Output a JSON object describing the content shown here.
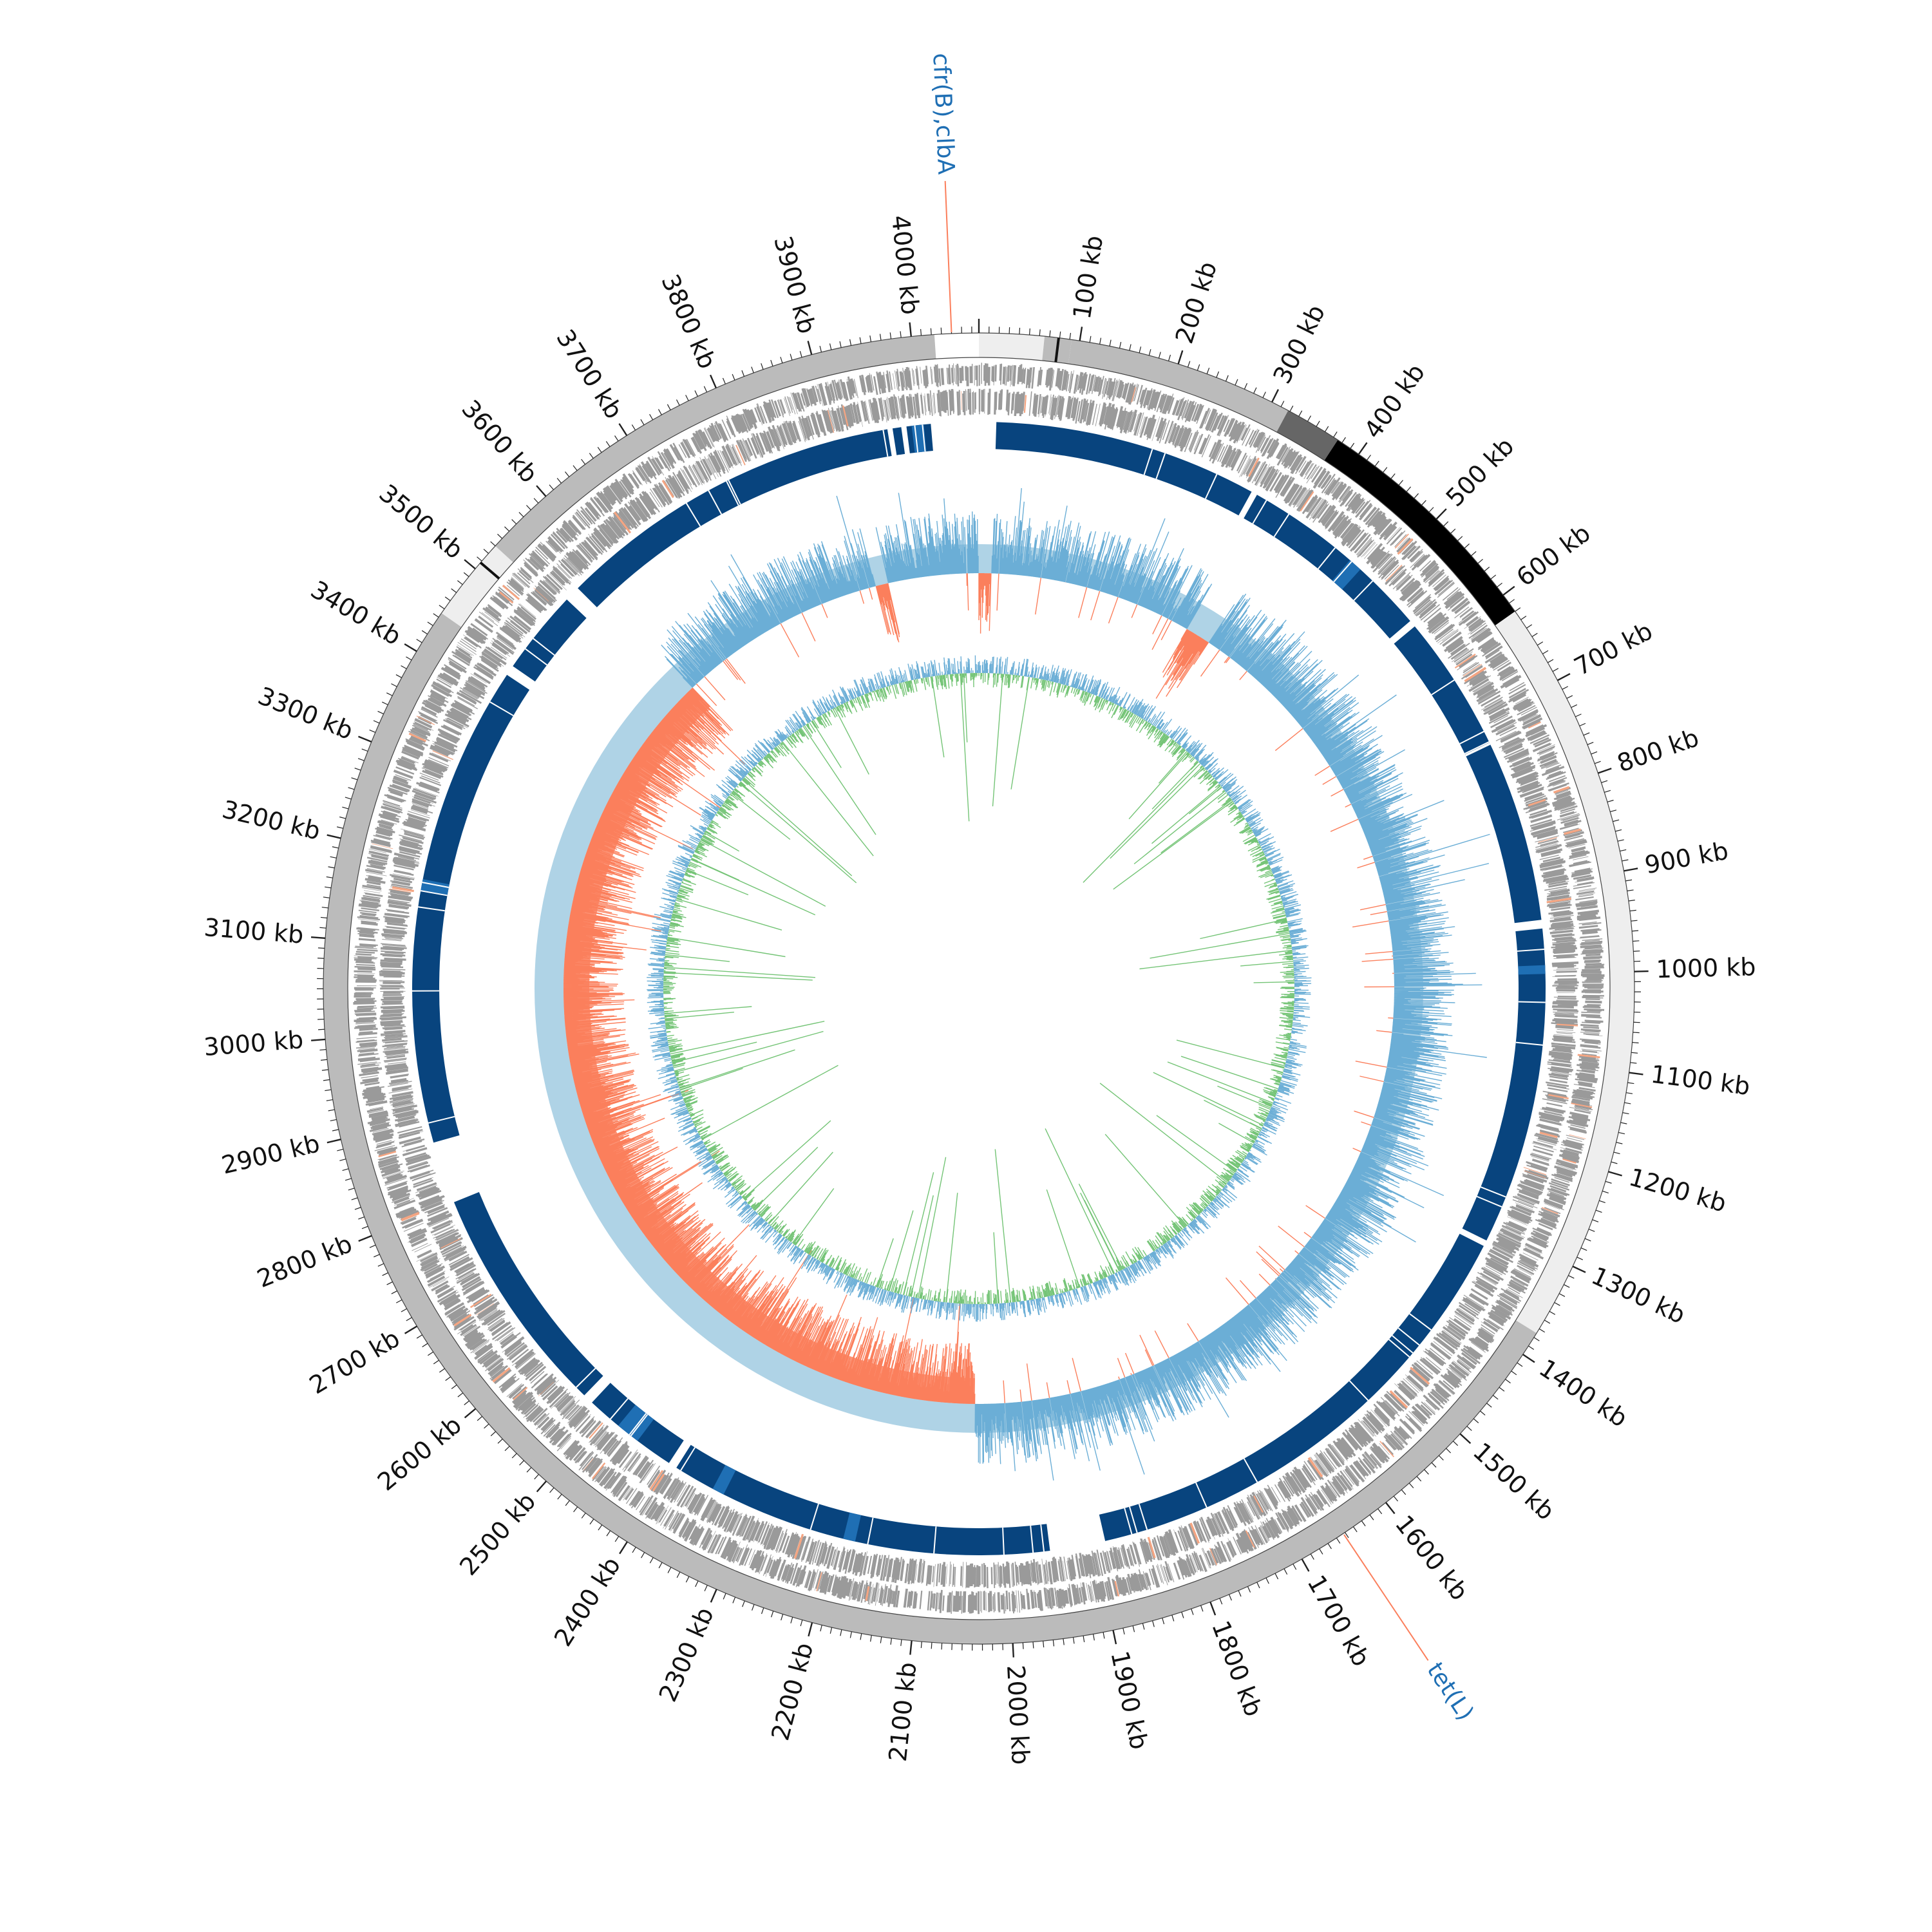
{
  "genome": {
    "length_kb": 4067,
    "tick_labels": [
      {
        "kb": 100,
        "label": "100 kb"
      },
      {
        "kb": 200,
        "label": "200 kb"
      },
      {
        "kb": 300,
        "label": "300 kb"
      },
      {
        "kb": 400,
        "label": "400 kb"
      },
      {
        "kb": 500,
        "label": "500 kb"
      },
      {
        "kb": 600,
        "label": "600 kb"
      },
      {
        "kb": 700,
        "label": "700 kb"
      },
      {
        "kb": 800,
        "label": "800 kb"
      },
      {
        "kb": 900,
        "label": "900 kb"
      },
      {
        "kb": 1000,
        "label": "1000 kb"
      },
      {
        "kb": 1100,
        "label": "1100 kb"
      },
      {
        "kb": 1200,
        "label": "1200 kb"
      },
      {
        "kb": 1300,
        "label": "1300 kb"
      },
      {
        "kb": 1400,
        "label": "1400 kb"
      },
      {
        "kb": 1500,
        "label": "1500 kb"
      },
      {
        "kb": 1600,
        "label": "1600 kb"
      },
      {
        "kb": 1700,
        "label": "1700 kb"
      },
      {
        "kb": 1800,
        "label": "1800 kb"
      },
      {
        "kb": 1900,
        "label": "1900 kb"
      },
      {
        "kb": 2000,
        "label": "2000 kb"
      },
      {
        "kb": 2100,
        "label": "2100 kb"
      },
      {
        "kb": 2200,
        "label": "2200 kb"
      },
      {
        "kb": 2300,
        "label": "2300 kb"
      },
      {
        "kb": 2400,
        "label": "2400 kb"
      },
      {
        "kb": 2500,
        "label": "2500 kb"
      },
      {
        "kb": 2600,
        "label": "2600 kb"
      },
      {
        "kb": 2700,
        "label": "2700 kb"
      },
      {
        "kb": 2800,
        "label": "2800 kb"
      },
      {
        "kb": 2900,
        "label": "2900 kb"
      },
      {
        "kb": 3000,
        "label": "3000 kb"
      },
      {
        "kb": 3100,
        "label": "3100 kb"
      },
      {
        "kb": 3200,
        "label": "3200 kb"
      },
      {
        "kb": 3300,
        "label": "3300 kb"
      },
      {
        "kb": 3400,
        "label": "3400 kb"
      },
      {
        "kb": 3500,
        "label": "3500 kb"
      },
      {
        "kb": 3600,
        "label": "3600 kb"
      },
      {
        "kb": 3700,
        "label": "3700 kb"
      },
      {
        "kb": 3800,
        "label": "3800 kb"
      },
      {
        "kb": 3900,
        "label": "3900 kb"
      },
      {
        "kb": 4000,
        "label": "4000 kb"
      }
    ],
    "contig_segments": [
      {
        "start": 0,
        "end": 65,
        "shade": "light"
      },
      {
        "start": 65,
        "end": 92,
        "shade": "mid"
      },
      {
        "start": 92,
        "end": 318,
        "shade": "mid"
      },
      {
        "start": 318,
        "end": 375,
        "shade": "dark"
      },
      {
        "start": 375,
        "end": 620,
        "shade": "black"
      },
      {
        "start": 620,
        "end": 1375,
        "shade": "light"
      },
      {
        "start": 1375,
        "end": 3445,
        "shade": "mid"
      },
      {
        "start": 3445,
        "end": 3530,
        "shade": "light"
      },
      {
        "start": 3530,
        "end": 4023,
        "shade": "mid"
      }
    ],
    "similarity_blocks": [
      {
        "start": 20,
        "end": 325
      },
      {
        "start": 332,
        "end": 560
      },
      {
        "start": 568,
        "end": 938
      },
      {
        "start": 948,
        "end": 1315
      },
      {
        "start": 1322,
        "end": 1888
      },
      {
        "start": 1952,
        "end": 2398
      },
      {
        "start": 2408,
        "end": 2520
      },
      {
        "start": 2532,
        "end": 2800
      },
      {
        "start": 2872,
        "end": 3430
      },
      {
        "start": 3442,
        "end": 3540
      },
      {
        "start": 3558,
        "end": 3962
      },
      {
        "start": 3968,
        "end": 3978
      },
      {
        "start": 3984,
        "end": 4012
      }
    ],
    "similarity_highlights": [
      {
        "start": 462,
        "end": 478
      },
      {
        "start": 990,
        "end": 1000
      },
      {
        "start": 2176,
        "end": 2190
      },
      {
        "start": 2336,
        "end": 2350
      },
      {
        "start": 2452,
        "end": 2480
      },
      {
        "start": 3162,
        "end": 3176
      },
      {
        "start": 3990,
        "end": 4004
      }
    ],
    "gc_skew_negative_region": {
      "start": 2040,
      "end": 3575
    },
    "gc_skew_negative_highlights": [
      {
        "start": 0,
        "end": 20
      },
      {
        "start": 340,
        "end": 380
      },
      {
        "start": 3905,
        "end": 3925
      }
    ],
    "gene_annotations": [
      {
        "kb": 4040,
        "label": "cfr(B),clbA",
        "color": "#1f6fb4"
      },
      {
        "kb": 1652,
        "label": "tet(L)",
        "color": "#1f6fb4"
      }
    ],
    "colors": {
      "contig_light": "#eeeeee",
      "contig_mid": "#bbbbbb",
      "contig_dark": "#666666",
      "contig_black": "#000000",
      "cds": "#9a9a9a",
      "cds_highlight": "#f4a582",
      "similarity_block": "#08447e",
      "similarity_highlight": "#1f6fb4",
      "gc_skew_positive": "#6baed6",
      "gc_skew_negative": "#fb7f5c",
      "gc_skew_fill_positive": "#a6cee3",
      "gc_content_positive": "#6baed6",
      "gc_content_negative": "#74c476",
      "annotation_line": "#fb7f5c"
    }
  }
}
